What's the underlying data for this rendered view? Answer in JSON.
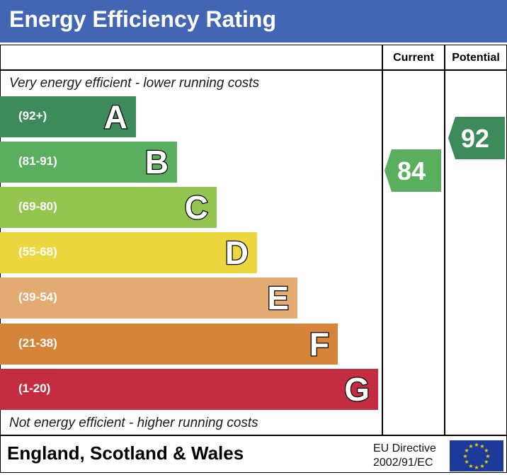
{
  "header": {
    "title": "Energy Efficiency Rating"
  },
  "columns": {
    "current": "Current",
    "potential": "Potential"
  },
  "notes": {
    "top": "Very energy efficient - lower running costs",
    "bottom": "Not energy efficient - higher running costs"
  },
  "footer": {
    "region": "England, Scotland & Wales",
    "directive_line1": "EU Directive",
    "directive_line2": "2002/91/EC"
  },
  "colors": {
    "title_bar": "#4266b4",
    "A": "#3d8a5a",
    "B": "#5aaf5e",
    "C": "#94c550",
    "D": "#ecd73e",
    "E": "#e3aa72",
    "F": "#d6843a",
    "G": "#c42d41"
  },
  "chart_data": {
    "type": "bar",
    "title": "Energy Efficiency Rating",
    "categories": [
      "A",
      "B",
      "C",
      "D",
      "E",
      "F",
      "G"
    ],
    "ranges": [
      "(92+)",
      "(81-91)",
      "(69-80)",
      "(55-68)",
      "(39-54)",
      "(21-38)",
      "(1-20)"
    ],
    "ratings": {
      "current": 84,
      "potential": 92
    },
    "current_band": "B",
    "potential_band": "A"
  },
  "icons": {
    "eu_flag": "eu-flag-icon"
  }
}
